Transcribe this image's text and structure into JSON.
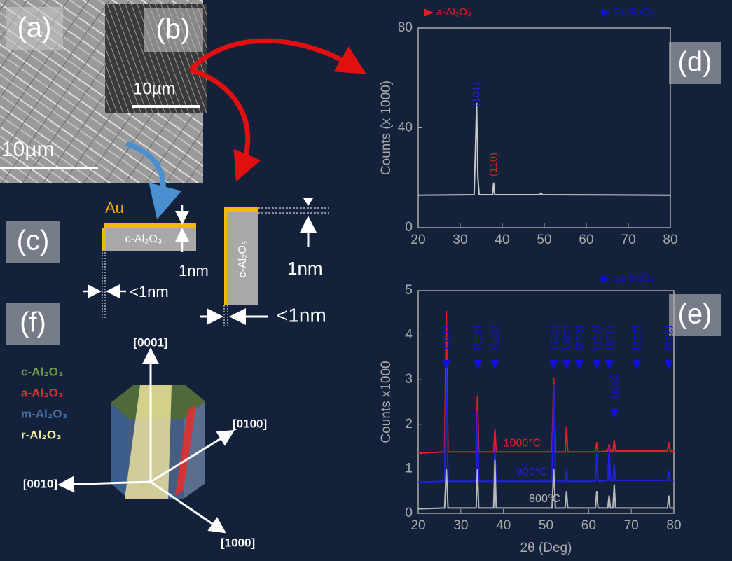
{
  "panel_labels": [
    "(a)",
    "(b)",
    "(c)",
    "(d)",
    "(e)",
    "(f)"
  ],
  "scale_bars": [
    "10µm",
    "10µm"
  ],
  "diagram_c": {
    "au": "Au",
    "block_labels": [
      "c-Al₂O₃",
      "c-Al₂O₃"
    ],
    "thickness_labels": [
      "1nm",
      "<1nm",
      "1nm",
      "<1nm"
    ]
  },
  "diagram_f": {
    "directions": [
      "[0001]",
      "[0100]",
      "[0010]",
      "[1000]"
    ],
    "planes": [
      {
        "name": "c-Al₂O₃",
        "color": "#6f9a45"
      },
      {
        "name": "a-Al₂O₃",
        "color": "#e03030"
      },
      {
        "name": "m-Al₂O₃",
        "color": "#4a72a8"
      },
      {
        "name": "r-Al₂O₃",
        "color": "#f2eaa0"
      }
    ]
  },
  "chart_data": [
    {
      "type": "line",
      "y_label": "Counts (x 1000)",
      "xlim": [
        20,
        80
      ],
      "xticks": [
        20,
        30,
        40,
        50,
        60,
        70,
        80
      ],
      "ylim": [
        0,
        80
      ],
      "yticks": [
        0,
        40,
        80
      ],
      "legend": [
        {
          "name": "a-Al₂O₃",
          "color": "#e02020"
        },
        {
          "name": "Sb:SnO₂",
          "color": "#1010d0"
        }
      ],
      "x": [
        20,
        33.3,
        33.6,
        33.9,
        34.2,
        34.5,
        37.7,
        37.95,
        38.2,
        48.8,
        49.2,
        49.6,
        80
      ],
      "series": [
        {
          "color": "#c8c8c8",
          "values": [
            13,
            13.2,
            30,
            50,
            20,
            13.2,
            13.2,
            18,
            13.2,
            13.2,
            13.8,
            13.2,
            13
          ]
        }
      ],
      "annotations": [
        {
          "text": "(101)",
          "x": 33.9,
          "color": "#2020c0"
        },
        {
          "text": "(110)",
          "x": 38,
          "color": "#d02020"
        }
      ]
    },
    {
      "type": "line",
      "x_label": "2θ (Deg)",
      "y_label": "Counts x1000",
      "xlim": [
        20,
        80
      ],
      "xticks": [
        20,
        30,
        40,
        50,
        60,
        70,
        80
      ],
      "ylim": [
        0,
        5
      ],
      "yticks": [
        0,
        1,
        2,
        3,
        4,
        5
      ],
      "legend": [
        {
          "name": "Sb:SnO₂",
          "color": "#1010d0"
        }
      ],
      "x": [
        20,
        26.2,
        26.6,
        27.0,
        33.6,
        33.9,
        34.2,
        37.7,
        38.0,
        38.3,
        51.4,
        51.8,
        52.2,
        54.5,
        54.8,
        55.1,
        61.6,
        61.9,
        62.2,
        64.5,
        64.8,
        65.1,
        65.7,
        66.0,
        66.3,
        78.5,
        78.8,
        79.1,
        80
      ],
      "series": [
        {
          "name": "1000°C",
          "color": "#e02020",
          "values": [
            1.35,
            1.38,
            4.55,
            1.38,
            1.38,
            2.65,
            1.38,
            1.38,
            1.9,
            1.38,
            1.38,
            3.05,
            1.38,
            1.38,
            1.95,
            1.38,
            1.38,
            1.6,
            1.38,
            1.4,
            1.55,
            1.4,
            1.4,
            1.65,
            1.4,
            1.4,
            1.6,
            1.4,
            1.4
          ]
        },
        {
          "name": "900°C",
          "color": "#2020e0",
          "values": [
            0.7,
            0.72,
            3.3,
            0.72,
            0.72,
            2.3,
            0.72,
            0.72,
            1.5,
            0.72,
            0.72,
            2.9,
            0.72,
            0.72,
            1.0,
            0.72,
            0.72,
            1.35,
            0.72,
            0.74,
            1.5,
            0.74,
            0.74,
            1.1,
            0.74,
            0.74,
            0.95,
            0.74,
            0.74
          ]
        },
        {
          "name": "800°C",
          "color": "#b8b8b8",
          "values": [
            0.1,
            0.12,
            1.0,
            0.12,
            0.12,
            1.0,
            0.12,
            0.12,
            1.2,
            0.12,
            0.12,
            1.0,
            0.12,
            0.12,
            0.5,
            0.12,
            0.12,
            0.5,
            0.12,
            0.12,
            0.4,
            0.12,
            0.12,
            0.65,
            0.12,
            0.12,
            0.4,
            0.12,
            0.12
          ]
        }
      ],
      "peak_markers": [
        {
          "label": "(110)",
          "x": 26.6
        },
        {
          "label": "(101)",
          "x": 34
        },
        {
          "label": "(200)",
          "x": 38
        },
        {
          "label": "(211)",
          "x": 51.8
        },
        {
          "label": "(220)",
          "x": 54.8
        },
        {
          "label": "(002)",
          "x": 57.8
        },
        {
          "label": "(310)",
          "x": 61.9
        },
        {
          "label": "(112)",
          "x": 64.8
        },
        {
          "label": "(301)",
          "x": 66
        },
        {
          "label": "(202)",
          "x": 71.3
        },
        {
          "label": "(321)",
          "x": 78.8
        }
      ]
    }
  ]
}
